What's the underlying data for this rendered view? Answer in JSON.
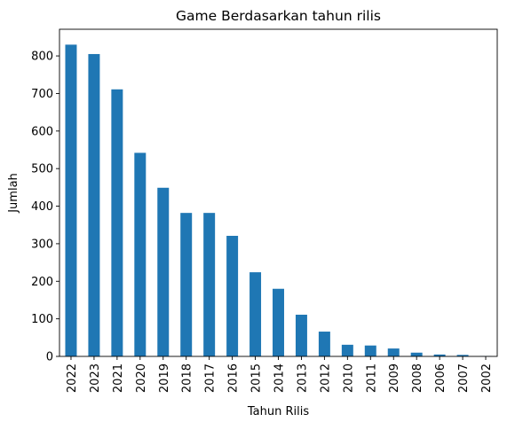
{
  "chart_data": {
    "type": "bar",
    "title": "Game Berdasarkan tahun rilis",
    "xlabel": "Tahun Rilis",
    "ylabel": "Jumlah",
    "categories": [
      "2022",
      "2023",
      "2021",
      "2020",
      "2019",
      "2018",
      "2017",
      "2016",
      "2015",
      "2014",
      "2013",
      "2012",
      "2010",
      "2011",
      "2009",
      "2008",
      "2006",
      "2007",
      "2002"
    ],
    "values": [
      830,
      805,
      711,
      542,
      449,
      382,
      382,
      321,
      224,
      180,
      111,
      66,
      31,
      29,
      21,
      10,
      5,
      4,
      1
    ],
    "ylim": [
      0,
      871
    ],
    "yticks": [
      0,
      100,
      200,
      300,
      400,
      500,
      600,
      700,
      800
    ],
    "bar_color": "#1f77b4",
    "grid": false,
    "legend": false
  }
}
